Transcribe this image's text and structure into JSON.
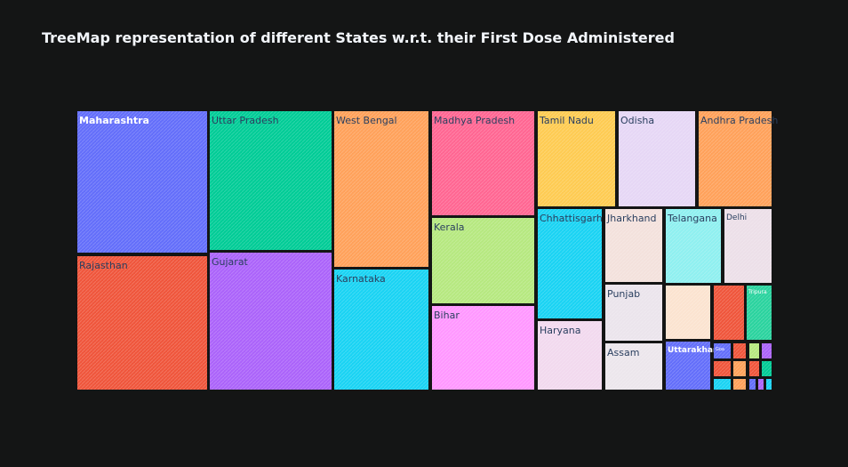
{
  "chart_data": {
    "type": "treemap",
    "title": "TreeMap representation of different States w.r.t. their First Dose Administered",
    "items": [
      {
        "label": "Maharashtra",
        "value": 6.8,
        "color": "#636efa",
        "text_color": "#ffffff"
      },
      {
        "label": "Uttar Pradesh",
        "value": 5.89,
        "color": "#00cc96",
        "text_color": "#2a3f5f"
      },
      {
        "label": "Rajasthan",
        "value": 5.42,
        "color": "#ef553b",
        "text_color": "#2a3f5f"
      },
      {
        "label": "Gujarat",
        "value": 5.19,
        "color": "#ab63fa",
        "text_color": "#2a3f5f"
      },
      {
        "label": "West Bengal",
        "value": 3.73,
        "color": "#ffa15a",
        "text_color": "#2a3f5f"
      },
      {
        "label": "Karnataka",
        "value": 3.16,
        "color": "#19d3f3",
        "text_color": "#2a3f5f"
      },
      {
        "label": "Madhya Pradesh",
        "value": 2.77,
        "color": "#ff6692",
        "text_color": "#2a3f5f"
      },
      {
        "label": "Kerala",
        "value": 2.31,
        "color": "#b6e880",
        "text_color": "#2a3f5f"
      },
      {
        "label": "Bihar",
        "value": 2.09,
        "color": "#ff97ff",
        "text_color": "#2a3f5f"
      },
      {
        "label": "Tamil Nadu",
        "value": 1.82,
        "color": "#fecb52",
        "text_color": "#2a3f5f"
      },
      {
        "label": "Odisha",
        "value": 1.71,
        "color": "#e6d7f5",
        "text_color": "#2a3f5f"
      },
      {
        "label": "Andhra Pradesh",
        "value": 1.71,
        "color": "#ffa15a",
        "text_color": "#2a3f5f"
      },
      {
        "label": "Chhattisgarh",
        "value": 1.52,
        "color": "#19d3f3",
        "text_color": "#2a3f5f"
      },
      {
        "label": "Haryana",
        "value": 0.99,
        "color": "#f2d9ee",
        "text_color": "#2a3f5f"
      },
      {
        "label": "Jharkhand",
        "value": 0.73,
        "color": "#f3e1dc",
        "text_color": "#2a3f5f"
      },
      {
        "label": "Punjab",
        "value": 0.73,
        "color": "#ebe4ec",
        "text_color": "#2a3f5f"
      },
      {
        "label": "Assam",
        "value": 0.73,
        "color": "#ece6ec",
        "text_color": "#2a3f5f"
      },
      {
        "label": "Telangana",
        "value": 0.72,
        "color": "#8ff0f0",
        "text_color": "#2a3f5f"
      },
      {
        "label": "Delhi",
        "value": 0.72,
        "color": "#ecdfe8",
        "text_color": "#2a3f5f"
      },
      {
        "label": "Uttarakhand",
        "value": 0.4,
        "color": "#636efa",
        "text_color": "#ffffff"
      },
      {
        "label": "Tripura",
        "value": 0.05,
        "color": "#2ad39e",
        "text_color": "#ffffff"
      },
      {
        "label": "Goa",
        "value": 0.01,
        "color": "#636efa",
        "text_color": "#ffffff"
      }
    ],
    "unlabeled_tiles": [
      {
        "color": "#fbe3d0"
      },
      {
        "color": "#ef553b"
      },
      {
        "color": "#2ad39e"
      },
      {
        "color": "#ef553b"
      },
      {
        "color": "#ffa15a"
      },
      {
        "color": "#b6e880"
      },
      {
        "color": "#ab63fa"
      },
      {
        "color": "#ef553b"
      },
      {
        "color": "#ffa15a"
      },
      {
        "color": "#ef553b"
      },
      {
        "color": "#00cc96"
      },
      {
        "color": "#19d3f3"
      },
      {
        "color": "#636efa"
      },
      {
        "color": "#ab63fa"
      },
      {
        "color": "#19d3f3"
      }
    ]
  }
}
